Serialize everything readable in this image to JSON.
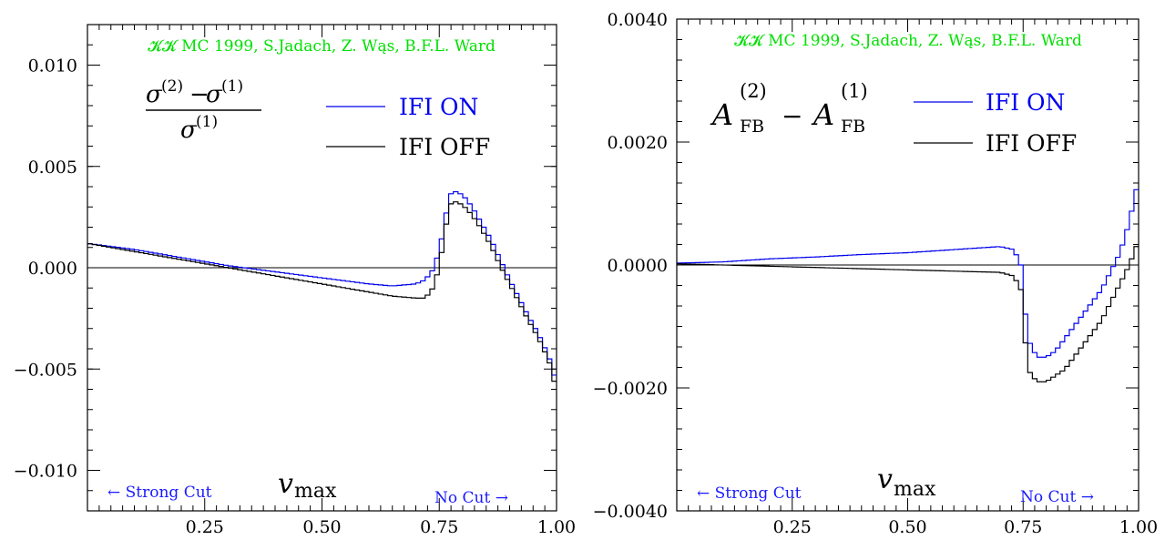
{
  "colors": {
    "ifi_on": "#0000ee",
    "ifi_off": "#000000",
    "credit": "#00e000",
    "cut_label": "#1a1aff"
  },
  "chart_data": [
    {
      "type": "line",
      "step": true,
      "credit": "𝓚𝓚 MC 1999, S.Jadach, Z. Wąs, B.F.L. Ward",
      "ylabel_formula": {
        "num_sigma": "σ",
        "num_sup2": "(2)",
        "minus": "−",
        "num_sigma2": "σ",
        "num_sup1": "(1)",
        "den_sigma": "σ",
        "den_sup": "(1)"
      },
      "xlabel": {
        "var": "v",
        "sub": "max"
      },
      "strong_cut": "← Strong Cut",
      "no_cut": "No Cut →",
      "xlim": [
        0.0,
        1.0
      ],
      "ylim": [
        -0.012,
        0.012
      ],
      "xticks": [
        0.25,
        0.5,
        0.75,
        1.0
      ],
      "xtick_labels": [
        "0.25",
        "0.50",
        "0.75",
        "1.00"
      ],
      "yticks": [
        -0.01,
        -0.005,
        0.0,
        0.005,
        0.01
      ],
      "ytick_labels": [
        "−0.010",
        "−0.005",
        "0.000",
        "0.005",
        "0.010"
      ],
      "legend": [
        "IFI ON",
        "IFI OFF"
      ],
      "series": [
        {
          "name": "IFI ON",
          "x": [
            0.0,
            0.1,
            0.2,
            0.3,
            0.4,
            0.5,
            0.6,
            0.65,
            0.7,
            0.72,
            0.74,
            0.76,
            0.77,
            0.78,
            0.8,
            0.82,
            0.84,
            0.86,
            0.88,
            0.9,
            0.92,
            0.94,
            0.96,
            0.98,
            0.99,
            1.0
          ],
          "values": [
            0.0012,
            0.0009,
            0.0005,
            0.0001,
            -0.0002,
            -0.0005,
            -0.0008,
            -0.0009,
            -0.0008,
            -0.0006,
            0.0,
            0.0019,
            0.0035,
            0.0038,
            0.0036,
            0.003,
            0.0022,
            0.0014,
            0.0004,
            -0.0006,
            -0.0015,
            -0.0024,
            -0.0032,
            -0.0042,
            -0.0048,
            -0.0058
          ]
        },
        {
          "name": "IFI OFF",
          "x": [
            0.0,
            0.1,
            0.2,
            0.3,
            0.4,
            0.5,
            0.6,
            0.65,
            0.7,
            0.72,
            0.74,
            0.76,
            0.77,
            0.78,
            0.8,
            0.82,
            0.84,
            0.86,
            0.88,
            0.9,
            0.92,
            0.94,
            0.96,
            0.98,
            0.99,
            1.0
          ],
          "values": [
            0.0012,
            0.0008,
            0.0004,
            0.0,
            -0.0004,
            -0.0008,
            -0.0012,
            -0.0014,
            -0.0015,
            -0.0015,
            -0.0009,
            0.0013,
            0.003,
            0.0033,
            0.0031,
            0.0026,
            0.0019,
            0.0011,
            0.0001,
            -0.0008,
            -0.0017,
            -0.0026,
            -0.0034,
            -0.0044,
            -0.005,
            -0.0062
          ]
        }
      ]
    },
    {
      "type": "line",
      "step": true,
      "credit": "𝓚𝓚 MC 1999, S.Jadach, Z. Wąs, B.F.L. Ward",
      "ylabel_formula": {
        "a": "A",
        "sup2": "(2)",
        "sub": "FB",
        "minus": "−",
        "sup1": "(1)"
      },
      "xlabel": {
        "var": "v",
        "sub": "max"
      },
      "strong_cut": "← Strong Cut",
      "no_cut": "No Cut →",
      "xlim": [
        0.0,
        1.0
      ],
      "ylim": [
        -0.004,
        0.004
      ],
      "xticks": [
        0.25,
        0.5,
        0.75,
        1.0
      ],
      "xtick_labels": [
        "0.25",
        "0.50",
        "0.75",
        "1.00"
      ],
      "yticks": [
        -0.004,
        -0.002,
        0.0,
        0.002,
        0.004
      ],
      "ytick_labels": [
        "−0.0040",
        "−0.0020",
        "0.0000",
        "0.0020",
        "0.0040"
      ],
      "legend": [
        "IFI ON",
        "IFI OFF"
      ],
      "series": [
        {
          "name": "IFI ON",
          "x": [
            0.0,
            0.1,
            0.2,
            0.3,
            0.4,
            0.5,
            0.6,
            0.7,
            0.73,
            0.745,
            0.76,
            0.78,
            0.8,
            0.82,
            0.84,
            0.86,
            0.88,
            0.9,
            0.92,
            0.94,
            0.96,
            0.98,
            1.0
          ],
          "values": [
            3e-05,
            5e-05,
            0.0001,
            0.00013,
            0.00017,
            0.0002,
            0.00025,
            0.0003,
            0.00025,
            0.0,
            -0.0012,
            -0.0015,
            -0.0015,
            -0.0014,
            -0.0012,
            -0.001,
            -0.0008,
            -0.0006,
            -0.0004,
            -0.0001,
            0.0002,
            0.0007,
            0.0014
          ]
        },
        {
          "name": "IFI OFF",
          "x": [
            0.0,
            0.1,
            0.2,
            0.3,
            0.4,
            0.5,
            0.6,
            0.7,
            0.73,
            0.745,
            0.76,
            0.78,
            0.8,
            0.82,
            0.84,
            0.86,
            0.88,
            0.9,
            0.92,
            0.94,
            0.96,
            0.98,
            1.0
          ],
          "values": [
            2e-05,
            0.0,
            -2e-05,
            -4e-05,
            -6e-05,
            -8e-05,
            -0.0001,
            -0.00012,
            -0.00018,
            -0.0004,
            -0.0017,
            -0.0019,
            -0.0019,
            -0.0018,
            -0.0017,
            -0.0015,
            -0.0013,
            -0.0011,
            -0.0009,
            -0.0006,
            -0.0003,
            0.0,
            0.0004
          ]
        }
      ]
    }
  ]
}
